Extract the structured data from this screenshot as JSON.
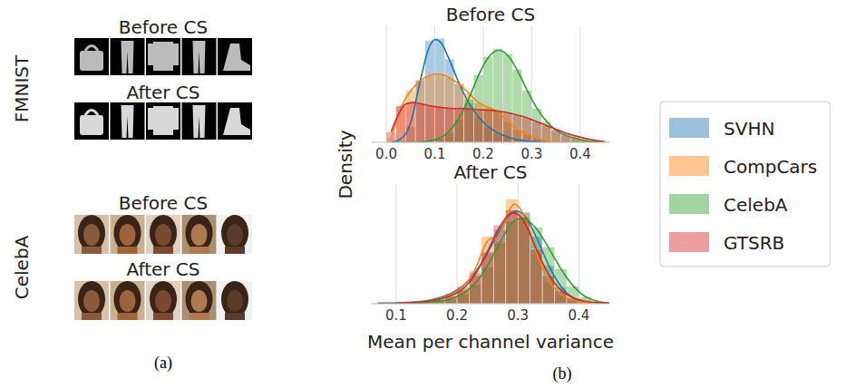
{
  "panel_a": {
    "label": "(a)",
    "rows": [
      {
        "dataset": "FMNIST",
        "before": "Before CS",
        "after": "After CS"
      },
      {
        "dataset": "CelebA",
        "before": "Before CS",
        "after": "After CS"
      }
    ]
  },
  "panel_b": {
    "label": "(b)",
    "ylabel": "Density"
  },
  "chart_data": [
    {
      "type": "histogram",
      "title": "Before CS",
      "legend": "right",
      "grid": true,
      "tick_labels": "x",
      "xlim": [
        -0.03,
        0.46
      ],
      "xticks": [
        {
          "value": 0,
          "label": "0.0"
        },
        0.1,
        0.2,
        0.3,
        0.4
      ],
      "ylim": [
        0,
        9
      ],
      "bins": [
        0,
        0.02,
        0.04,
        0.06,
        0.08,
        0.1,
        0.12,
        0.14,
        0.16,
        0.18,
        0.2,
        0.22,
        0.24,
        0.26,
        0.28,
        0.3,
        0.32,
        0.34,
        0.36,
        0.38,
        0.4,
        0.42,
        0.44,
        0.46
      ],
      "series": [
        {
          "name": "SVHN",
          "color": "#1f77b4",
          "values": [
            0,
            0.1,
            1.2,
            4.8,
            7.8,
            8.0,
            6.4,
            4.5,
            3.0,
            1.9,
            1.2,
            0.7,
            0.4,
            0.2,
            0.1,
            0.05,
            0,
            0,
            0,
            0,
            0,
            0,
            0
          ]
        },
        {
          "name": "CompCars",
          "color": "#ff7f0e",
          "values": [
            0.3,
            2.8,
            4.0,
            4.8,
            5.2,
            5.3,
            5.0,
            4.5,
            3.8,
            3.0,
            2.7,
            2.4,
            1.6,
            1.0,
            0.6,
            0.3,
            0.1,
            0,
            0,
            0,
            0,
            0,
            0
          ]
        },
        {
          "name": "CelebA",
          "color": "#2ca02c",
          "values": [
            0,
            0,
            0,
            0,
            0.1,
            0.3,
            0.8,
            1.8,
            3.3,
            5.2,
            6.6,
            7.2,
            6.8,
            5.6,
            4.0,
            2.6,
            1.6,
            0.9,
            0.5,
            0.3,
            0.1,
            0.05,
            0
          ]
        },
        {
          "name": "GTSRB",
          "color": "#d62728",
          "values": [
            0.8,
            2.8,
            3.1,
            3.0,
            2.8,
            2.7,
            2.6,
            2.6,
            2.6,
            2.5,
            2.5,
            2.4,
            2.3,
            2.1,
            1.9,
            1.6,
            1.3,
            1.0,
            0.7,
            0.5,
            0.3,
            0.15,
            0.05
          ]
        }
      ]
    },
    {
      "type": "histogram",
      "title": "After CS",
      "xlabel": "Mean per channel variance",
      "grid": true,
      "tick_labels": "x",
      "xlim": [
        0.06,
        0.45
      ],
      "xticks": [
        0.1,
        0.2,
        0.3,
        0.4
      ],
      "ylim": [
        0,
        11
      ],
      "bins": [
        0.06,
        0.08,
        0.1,
        0.12,
        0.14,
        0.16,
        0.18,
        0.2,
        0.22,
        0.24,
        0.26,
        0.28,
        0.3,
        0.32,
        0.34,
        0.36,
        0.38,
        0.4,
        0.42,
        0.44,
        0.46
      ],
      "series": [
        {
          "name": "SVHN",
          "color": "#1f77b4",
          "values": [
            0.05,
            0.05,
            0.1,
            0.15,
            0.25,
            0.5,
            0.9,
            1.6,
            2.8,
            4.6,
            6.8,
            8.6,
            8.4,
            6.2,
            3.5,
            1.5,
            0.5,
            0.15,
            0.05,
            0
          ]
        },
        {
          "name": "CompCars",
          "color": "#ff7f0e",
          "values": [
            0,
            0,
            0.05,
            0.1,
            0.2,
            0.4,
            0.8,
            1.5,
            3.0,
            6.2,
            5.8,
            9.6,
            8.4,
            4.6,
            2.0,
            0.8,
            0.3,
            0.1,
            0,
            0
          ]
        },
        {
          "name": "CelebA",
          "color": "#2ca02c",
          "values": [
            0,
            0,
            0,
            0.05,
            0.1,
            0.2,
            0.4,
            0.9,
            1.8,
            3.4,
            5.6,
            7.6,
            8.0,
            7.0,
            5.2,
            3.2,
            1.6,
            0.6,
            0.2,
            0.05
          ]
        },
        {
          "name": "GTSRB",
          "color": "#d62728",
          "values": [
            0,
            0,
            0.05,
            0.1,
            0.2,
            0.4,
            0.7,
            1.3,
            2.6,
            4.8,
            7.2,
            8.6,
            7.8,
            5.0,
            2.6,
            1.2,
            0.5,
            0.2,
            0.1,
            0.05
          ]
        }
      ]
    }
  ]
}
